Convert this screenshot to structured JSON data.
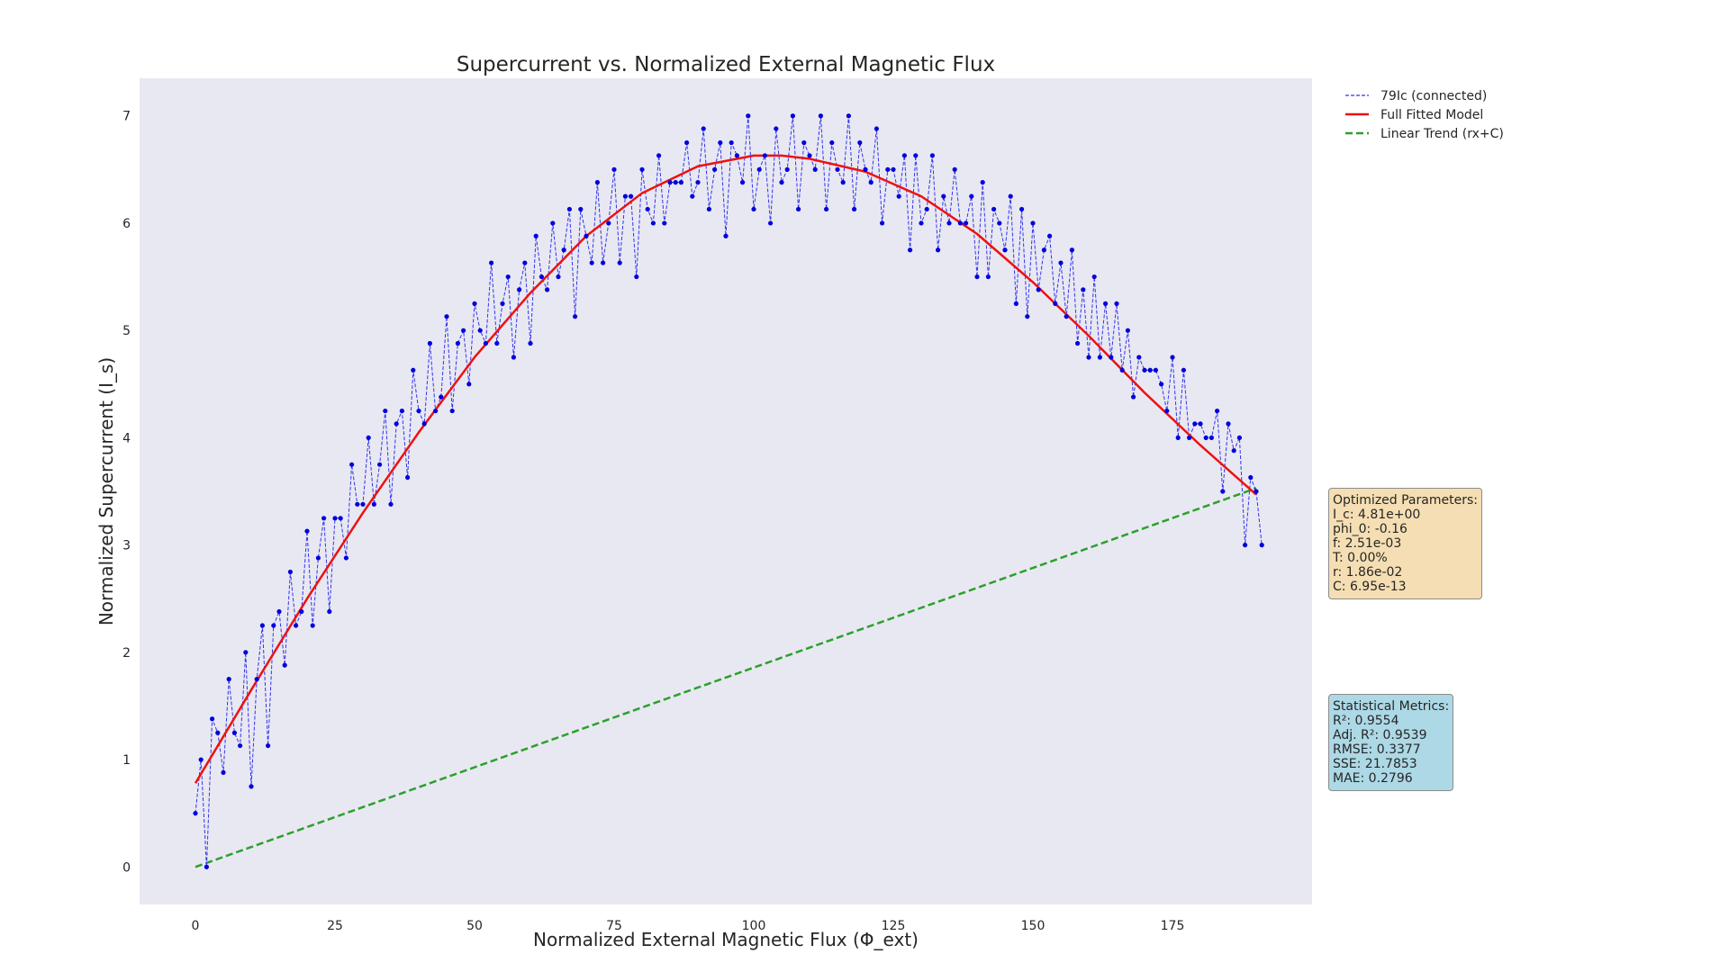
{
  "chart_data": {
    "type": "line",
    "title": "Supercurrent vs. Normalized External Magnetic Flux",
    "xlabel": "Normalized External Magnetic Flux (Φ_ext)",
    "ylabel": "Normalized Supercurrent (I_s)",
    "xlim": [
      -10,
      200
    ],
    "ylim": [
      -0.35,
      7.35
    ],
    "xticks": [
      0,
      25,
      50,
      75,
      100,
      125,
      150,
      175
    ],
    "yticks": [
      0,
      1,
      2,
      3,
      4,
      5,
      6,
      7
    ],
    "grid": false,
    "legend_position": "outside upper right",
    "colors": {
      "data": "#0000dd",
      "model": "#ee1111",
      "trend": "#2ca02c",
      "plot_bg": "#e8e8f2"
    },
    "series": [
      {
        "name": "79Ic (connected)",
        "style": "dashed line with point markers",
        "x_start": 0,
        "x_step": 1,
        "values": [
          0.5,
          1.0,
          0.0,
          1.38,
          1.25,
          0.88,
          1.75,
          1.25,
          1.13,
          2.0,
          0.75,
          1.75,
          2.25,
          1.13,
          2.25,
          2.38,
          1.88,
          2.75,
          2.25,
          2.38,
          3.13,
          2.25,
          2.88,
          3.25,
          2.38,
          3.25,
          3.25,
          2.88,
          3.75,
          3.38,
          3.38,
          4.0,
          3.38,
          3.75,
          4.25,
          3.38,
          4.13,
          4.25,
          3.63,
          4.63,
          4.25,
          4.13,
          4.88,
          4.25,
          4.38,
          5.13,
          4.25,
          4.88,
          5.0,
          4.5,
          5.25,
          5.0,
          4.88,
          5.63,
          4.88,
          5.25,
          5.5,
          4.75,
          5.38,
          5.63,
          4.88,
          5.88,
          5.5,
          5.38,
          6.0,
          5.5,
          5.75,
          6.13,
          5.13,
          6.13,
          5.88,
          5.63,
          6.38,
          5.63,
          6.0,
          6.5,
          5.63,
          6.25,
          6.25,
          5.5,
          6.5,
          6.13,
          6.0,
          6.63,
          6.0,
          6.38,
          6.38,
          6.38,
          6.75,
          6.25,
          6.38,
          6.88,
          6.13,
          6.5,
          6.75,
          5.88,
          6.75,
          6.63,
          6.38,
          7.0,
          6.13,
          6.5,
          6.63,
          6.0,
          6.88,
          6.38,
          6.5,
          7.0,
          6.13,
          6.75,
          6.63,
          6.5,
          7.0,
          6.13,
          6.75,
          6.5,
          6.38,
          7.0,
          6.13,
          6.75,
          6.5,
          6.38,
          6.88,
          6.0,
          6.5,
          6.5,
          6.25,
          6.63,
          5.75,
          6.63,
          6.0,
          6.13,
          6.63,
          5.75,
          6.25,
          6.0,
          6.5,
          6.0,
          6.0,
          6.25,
          5.5,
          6.38,
          5.5,
          6.13,
          6.0,
          5.75,
          6.25,
          5.25,
          6.13,
          5.13,
          6.0,
          5.38,
          5.75,
          5.88,
          5.25,
          5.63,
          5.13,
          5.75,
          4.88,
          5.38,
          4.75,
          5.5,
          4.75,
          5.25,
          4.75,
          5.25,
          4.63,
          5.0,
          4.38,
          4.75,
          4.63,
          4.63,
          4.63,
          4.5,
          4.25,
          4.75,
          4.0,
          4.63,
          4.0,
          4.13,
          4.13,
          4.0,
          4.0,
          4.25,
          3.5,
          4.13,
          3.88,
          4.0,
          3.0,
          3.63,
          3.5,
          3.0
        ]
      },
      {
        "name": "Full Fitted Model",
        "style": "solid line",
        "x": [
          0,
          10,
          20,
          30,
          40,
          50,
          60,
          70,
          80,
          90,
          100,
          105,
          110,
          120,
          130,
          140,
          150,
          160,
          170,
          180,
          190
        ],
        "values": [
          0.78,
          1.65,
          2.5,
          3.3,
          4.05,
          4.75,
          5.35,
          5.88,
          6.28,
          6.53,
          6.63,
          6.63,
          6.6,
          6.48,
          6.25,
          5.9,
          5.45,
          4.95,
          4.42,
          3.93,
          3.47
        ]
      },
      {
        "name": "Linear Trend (rx+C)",
        "style": "dashed line",
        "x": [
          0,
          190
        ],
        "values": [
          0.0,
          3.53
        ]
      }
    ]
  },
  "legend": {
    "items": [
      "79Ic (connected)",
      "Full Fitted Model",
      "Linear Trend (rx+C)"
    ]
  },
  "params_box": {
    "title": "Optimized Parameters:",
    "lines": [
      "I_c: 4.81e+00",
      "phi_0: -0.16",
      "f: 2.51e-03",
      "T: 0.00%",
      "r: 1.86e-02",
      "C: 6.95e-13"
    ]
  },
  "metrics_box": {
    "title": "Statistical Metrics:",
    "lines": [
      "R²: 0.9554",
      "Adj. R²: 0.9539",
      "RMSE: 0.3377",
      "SSE: 21.7853",
      "MAE: 0.2796"
    ]
  }
}
